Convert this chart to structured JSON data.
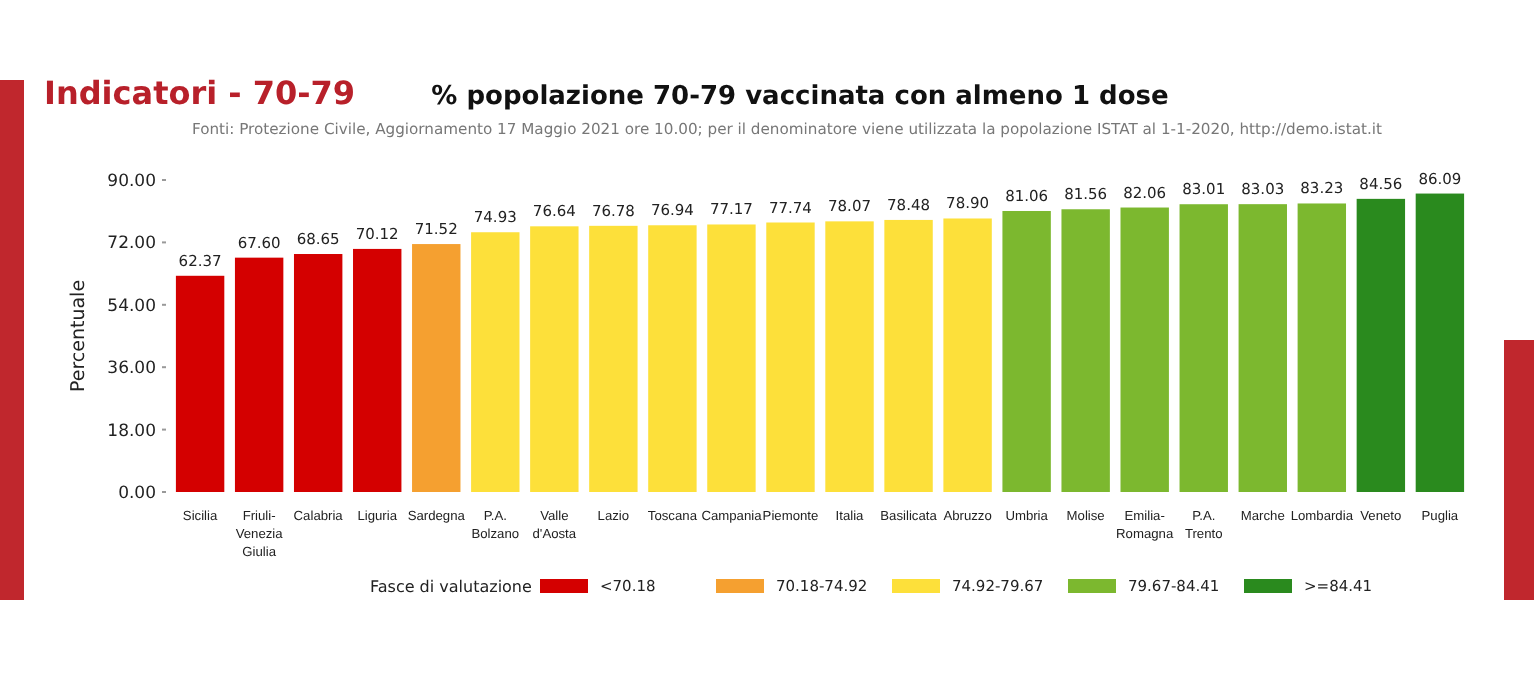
{
  "chart_data": {
    "type": "bar",
    "title": "% popolazione 70-79 vaccinata con almeno 1 dose",
    "subtitle": "Fonti: Protezione Civile, Aggiornamento 17 Maggio 2021 ore 10.00; per il denominatore viene utilizzata la popolazione ISTAT al 1-1-2020, http://demo.istat.it",
    "annotations": [
      "Indicatori - 70-79"
    ],
    "ylabel": "Percentuale",
    "legend_title": "Fasce di valutazione",
    "legend": "bottom",
    "stacked": true,
    "grid": false,
    "categories": [
      "Sicilia",
      "Friuli-Venezia Giulia",
      "Calabria",
      "Liguria",
      "Sardegna",
      "P.A. Bolzano",
      "Valle d'Aosta",
      "Lazio",
      "Toscana",
      "Campania",
      "Piemonte",
      "Italia",
      "Basilicata",
      "Abruzzo",
      "Umbria",
      "Molise",
      "Emilia-Romagna",
      "P.A. Trento",
      "Marche",
      "Lombardia",
      "Veneto",
      "Puglia"
    ],
    "ylim": [
      0,
      90
    ],
    "yticks": [
      {
        "value": 0,
        "label": "0.00"
      },
      {
        "value": 18,
        "label": "18.00"
      },
      {
        "value": 36,
        "label": "36.00"
      },
      {
        "value": 54,
        "label": "54.00"
      },
      {
        "value": 72,
        "label": "72.00"
      },
      {
        "value": 90,
        "label": "90.00"
      }
    ],
    "series": [
      {
        "name": "<70.18",
        "color": "#d40000",
        "values": [
          62.37,
          67.6,
          68.65,
          70.12,
          null,
          null,
          null,
          null,
          null,
          null,
          null,
          null,
          null,
          null,
          null,
          null,
          null,
          null,
          null,
          null,
          null,
          null
        ],
        "value_labels": [
          "62.37",
          "67.60",
          "68.65",
          "70.12",
          null,
          null,
          null,
          null,
          null,
          null,
          null,
          null,
          null,
          null,
          null,
          null,
          null,
          null,
          null,
          null,
          null,
          null
        ]
      },
      {
        "name": "70.18-74.92",
        "color": "#f5a030",
        "values": [
          null,
          null,
          null,
          null,
          71.52,
          null,
          null,
          null,
          null,
          null,
          null,
          null,
          null,
          null,
          null,
          null,
          null,
          null,
          null,
          null,
          null,
          null
        ],
        "value_labels": [
          null,
          null,
          null,
          null,
          "71.52",
          null,
          null,
          null,
          null,
          null,
          null,
          null,
          null,
          null,
          null,
          null,
          null,
          null,
          null,
          null,
          null,
          null
        ]
      },
      {
        "name": "74.92-79.67",
        "color": "#fde03a",
        "values": [
          null,
          null,
          null,
          null,
          null,
          74.93,
          76.64,
          76.78,
          76.94,
          77.17,
          77.74,
          78.07,
          78.48,
          78.9,
          null,
          null,
          null,
          null,
          null,
          null,
          null,
          null
        ],
        "value_labels": [
          null,
          null,
          null,
          null,
          null,
          "74.93",
          "76.64",
          "76.78",
          "76.94",
          "77.17",
          "77.74",
          "78.07",
          "78.48",
          "78.90",
          null,
          null,
          null,
          null,
          null,
          null,
          null,
          null
        ]
      },
      {
        "name": "79.67-84.41",
        "color": "#7cb82f",
        "values": [
          null,
          null,
          null,
          null,
          null,
          null,
          null,
          null,
          null,
          null,
          null,
          null,
          null,
          null,
          81.06,
          81.56,
          82.06,
          83.01,
          83.03,
          83.23,
          null,
          null
        ],
        "value_labels": [
          null,
          null,
          null,
          null,
          null,
          null,
          null,
          null,
          null,
          null,
          null,
          null,
          null,
          null,
          "81.06",
          "81.56",
          "82.06",
          "83.01",
          "83.03",
          "83.23",
          null,
          null
        ]
      },
      {
        "name": ">=84.41",
        "color": "#2a8a1e",
        "values": [
          null,
          null,
          null,
          null,
          null,
          null,
          null,
          null,
          null,
          null,
          null,
          null,
          null,
          null,
          null,
          null,
          null,
          null,
          null,
          null,
          84.56,
          86.09
        ],
        "value_labels": [
          null,
          null,
          null,
          null,
          null,
          null,
          null,
          null,
          null,
          null,
          null,
          null,
          null,
          null,
          null,
          null,
          null,
          null,
          null,
          null,
          "84.56",
          "86.09"
        ]
      }
    ]
  }
}
